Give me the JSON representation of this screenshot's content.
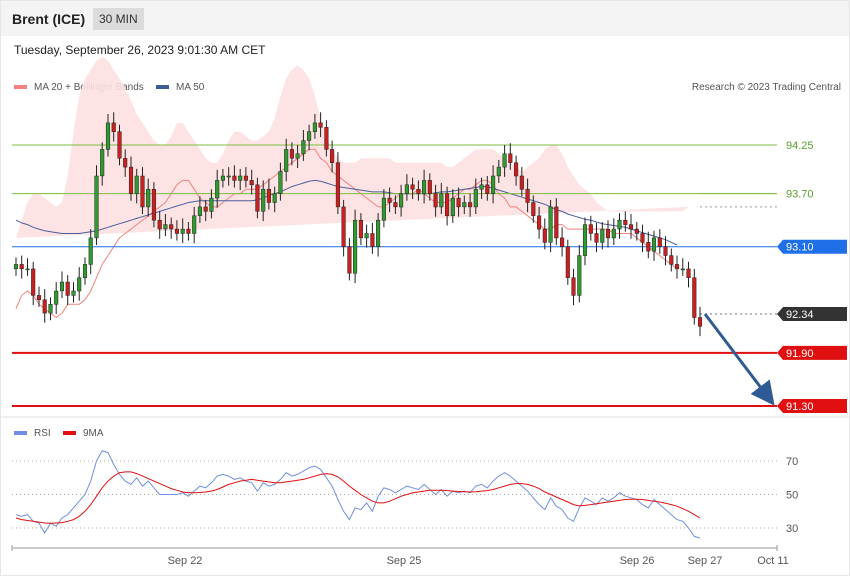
{
  "header": {
    "symbol": "Brent (ICE)",
    "timeframe": "30 MIN"
  },
  "datetime": "Tuesday, September 26, 2023 9:01:30 AM CET",
  "credit": "Research © 2023 Trading Central",
  "colors": {
    "up": "#2f9a2f",
    "down": "#cc1f1f",
    "ma20": "#f2837f",
    "ma50": "#4a5f9e",
    "band": "#fde0e0",
    "support": "#e01010",
    "pivot": "#1f6fe8",
    "last": "#333333",
    "resistance": "#7bbd3f",
    "rsi": "#6f8fe0",
    "rsi_ma": "#e01010",
    "arrow": "#2f5b94"
  },
  "chart_data": [
    {
      "type": "candlestick",
      "title": "Brent (ICE)",
      "legend": [
        {
          "label": "MA 20 + Bollinger Bands",
          "color": "#f2837f"
        },
        {
          "label": "MA 50",
          "color": "#3b5b99"
        }
      ],
      "x_tick_labels": [
        "Sep 22",
        "Sep 25",
        "Sep 26",
        "Sep 27",
        "Oct 11"
      ],
      "ylim": [
        90.9,
        95.4
      ],
      "levels": [
        {
          "label": "94.25",
          "value": 94.25,
          "kind": "resistance"
        },
        {
          "label": "93.70",
          "value": 93.7,
          "kind": "resistance"
        },
        {
          "label": "93.10",
          "value": 93.1,
          "kind": "pivot"
        },
        {
          "label": "92.34",
          "value": 92.34,
          "kind": "last"
        },
        {
          "label": "91.90",
          "value": 91.9,
          "kind": "support"
        },
        {
          "label": "91.30",
          "value": 91.3,
          "kind": "support"
        }
      ],
      "projection": {
        "from": 92.34,
        "to": 91.3
      },
      "close": [
        92.9,
        92.85,
        92.85,
        92.55,
        92.5,
        92.35,
        92.45,
        92.6,
        92.7,
        92.55,
        92.6,
        92.75,
        92.9,
        93.2,
        93.9,
        94.2,
        94.5,
        94.4,
        94.1,
        94,
        93.7,
        93.9,
        93.55,
        93.75,
        93.4,
        93.3,
        93.35,
        93.3,
        93.25,
        93.3,
        93.25,
        93.45,
        93.55,
        93.5,
        93.65,
        93.85,
        93.9,
        93.9,
        93.85,
        93.9,
        93.85,
        93.8,
        93.5,
        93.75,
        93.6,
        93.7,
        93.95,
        94.2,
        94.1,
        94.15,
        94.3,
        94.4,
        94.5,
        94.45,
        94.2,
        94.05,
        93.55,
        93.1,
        92.8,
        93.4,
        93.2,
        93.25,
        93.1,
        93.4,
        93.65,
        93.6,
        93.55,
        93.7,
        93.8,
        93.75,
        93.7,
        93.85,
        93.7,
        93.55,
        93.7,
        93.45,
        93.65,
        93.55,
        93.6,
        93.55,
        93.75,
        93.8,
        93.7,
        93.9,
        94,
        94.15,
        94.05,
        93.9,
        93.75,
        93.6,
        93.45,
        93.3,
        93.15,
        93.55,
        93.2,
        93.1,
        92.75,
        92.55,
        93,
        93.35,
        93.25,
        93.15,
        93.3,
        93.2,
        93.3,
        93.4,
        93.35,
        93.3,
        93.25,
        93.15,
        93.05,
        93.2,
        93.1,
        93,
        92.9,
        92.85,
        92.85,
        92.75,
        92.3,
        92.2
      ],
      "ma20_by_candle": [
        92.4,
        92.55,
        92.6,
        92.55,
        92.45,
        92.4,
        92.35,
        92.3,
        92.35,
        92.45,
        92.45,
        92.45,
        92.5,
        92.6,
        92.75,
        92.9,
        93,
        93.1,
        93.2,
        93.25,
        93.3,
        93.35,
        93.4,
        93.45,
        93.5,
        93.55,
        93.6,
        93.7,
        93.8,
        93.85,
        93.85,
        93.75,
        93.65,
        93.6,
        93.55,
        93.55,
        93.6,
        93.65,
        93.7,
        93.7,
        93.75,
        93.75,
        93.75,
        93.8,
        93.85,
        93.9,
        93.95,
        94,
        94.05,
        94.1,
        94.15,
        94.2,
        94.2,
        94.1,
        94.05,
        93.95,
        93.9,
        93.85,
        93.8,
        93.75,
        93.7,
        93.65,
        93.6,
        93.55,
        93.55,
        93.6,
        93.65,
        93.7,
        93.7,
        93.7,
        93.75,
        93.7,
        93.65,
        93.6,
        93.6,
        93.6,
        93.65,
        93.7,
        93.75,
        93.75,
        93.8,
        93.85,
        93.85,
        93.8,
        93.7,
        93.65,
        93.55,
        93.55,
        93.5,
        93.45,
        93.4,
        93.35,
        93.3,
        93.3,
        93.35,
        93.35,
        93.3,
        93.3,
        93.3,
        93.3,
        93.3,
        93.3,
        93.3,
        93.3,
        93.25,
        93.25,
        93.25,
        93.25,
        93.2,
        93.15,
        93.1,
        93.05,
        93,
        92.95,
        92.9,
        92.85
      ],
      "ma50_by_candle": [
        93.4,
        93.37,
        93.35,
        93.32,
        93.3,
        93.28,
        93.27,
        93.26,
        93.25,
        93.25,
        93.25,
        93.25,
        93.26,
        93.27,
        93.28,
        93.3,
        93.32,
        93.34,
        93.36,
        93.38,
        93.4,
        93.42,
        93.44,
        93.46,
        93.48,
        93.5,
        93.52,
        93.54,
        93.56,
        93.58,
        93.6,
        93.61,
        93.62,
        93.62,
        93.62,
        93.62,
        93.62,
        93.62,
        93.62,
        93.62,
        93.62,
        93.62,
        93.63,
        93.65,
        93.68,
        93.7,
        93.72,
        93.75,
        93.78,
        93.8,
        93.82,
        93.84,
        93.85,
        93.84,
        93.82,
        93.8,
        93.78,
        93.77,
        93.76,
        93.75,
        93.74,
        93.73,
        93.72,
        93.72,
        93.72,
        93.71,
        93.7,
        93.7,
        93.7,
        93.7,
        93.7,
        93.7,
        93.7,
        93.71,
        93.72,
        93.72,
        93.73,
        93.74,
        93.75,
        93.76,
        93.77,
        93.78,
        93.78,
        93.76,
        93.74,
        93.72,
        93.7,
        93.68,
        93.66,
        93.64,
        93.62,
        93.6,
        93.58,
        93.55,
        93.52,
        93.5,
        93.47,
        93.45,
        93.43,
        93.41,
        93.4,
        93.38,
        93.36,
        93.35,
        93.34,
        93.33,
        93.32,
        93.3,
        93.28,
        93.26,
        93.24,
        93.22,
        93.2,
        93.18,
        93.15,
        93.12
      ],
      "bb_upper_by_candle": [
        93.2,
        93.4,
        93.6,
        93.7,
        93.7,
        93.65,
        93.6,
        93.55,
        93.6,
        93.9,
        94.4,
        94.8,
        95,
        95.1,
        95.2,
        95.25,
        95.2,
        95.1,
        95,
        94.9,
        94.75,
        94.6,
        94.5,
        94.4,
        94.3,
        94.25,
        94.25,
        94.35,
        94.5,
        94.5,
        94.4,
        94.3,
        94.2,
        94.1,
        94.05,
        94.05,
        94.15,
        94.3,
        94.4,
        94.4,
        94.35,
        94.3,
        94.3,
        94.35,
        94.4,
        94.55,
        94.8,
        95,
        95.1,
        95.15,
        95.1,
        95,
        94.8,
        94.55,
        94.35,
        94.2,
        94.1,
        94.05,
        94.05,
        94.05,
        94.1,
        94.1,
        94.1,
        94.1,
        94.1,
        94.1,
        94.05,
        94.05,
        94.05,
        94.05,
        94.05,
        94.05,
        94.05,
        94.05,
        94.05,
        94,
        94,
        94.05,
        94.1,
        94.15,
        94.2,
        94.2,
        94.2,
        94.2,
        94.15,
        94.1,
        94.05,
        94,
        93.95,
        94,
        94.05,
        94.1,
        94.2,
        94.25,
        94.25,
        94.15,
        94,
        93.9,
        93.8,
        93.75,
        93.7,
        93.6,
        93.55,
        93.5,
        93.5,
        93.5,
        93.5,
        93.5,
        93.5,
        93.5,
        93.5,
        93.5,
        93.5,
        93.5,
        93.5,
        93.5,
        93.5,
        93.55
      ],
      "bb_lower_by_candle": [
        91.9,
        91.8,
        91.7,
        91.65,
        91.6,
        91.6,
        91.7,
        91.8,
        91.65,
        91.3,
        91.05,
        90.95,
        90.95,
        91.05,
        91.2,
        91.4,
        91.6,
        91.8,
        92,
        92.2,
        92.4,
        92.55,
        92.7,
        92.8,
        92.9,
        93,
        93,
        93,
        93,
        93.05,
        93.1,
        93.1,
        93.05,
        93,
        92.95,
        92.95,
        92.95,
        93,
        93,
        93,
        93,
        93,
        93,
        93,
        93.05,
        93.05,
        93.1,
        93.15,
        93.2,
        93.2,
        93.2,
        93.15,
        93.05,
        92.9,
        92.75,
        92.65,
        92.6,
        92.55,
        92.6,
        92.65,
        92.7,
        92.75,
        92.8,
        92.9,
        92.95,
        93,
        93,
        93.05,
        93.1,
        93.1,
        93.15,
        93.15,
        93.15,
        93.15,
        93.15,
        93.15,
        93.15,
        93.15,
        93.15,
        93.15,
        93.15,
        93.15,
        93.15,
        93.1,
        93.05,
        92.95,
        92.85,
        92.75,
        92.65,
        92.6,
        92.55,
        92.5,
        92.5,
        92.5,
        92.5,
        92.55,
        92.6,
        92.65,
        92.7,
        92.75,
        92.8,
        92.85,
        92.9,
        92.9,
        92.9,
        92.95,
        92.95,
        93,
        93,
        93,
        93,
        93,
        93,
        93,
        93,
        93,
        93,
        93.05
      ]
    },
    {
      "type": "line",
      "title": "RSI",
      "legend": [
        {
          "label": "RSI",
          "color": "#6f8fe0"
        },
        {
          "label": "9MA",
          "color": "#e01010"
        }
      ],
      "ylim": [
        20,
        82
      ],
      "y_ticks": [
        30,
        50,
        70
      ],
      "series": [
        {
          "name": "RSI",
          "values": [
            38,
            37,
            38,
            34,
            33,
            27,
            33,
            31,
            36,
            38,
            42,
            46,
            50,
            58,
            70,
            76,
            75,
            68,
            62,
            58,
            56,
            60,
            55,
            58,
            54,
            50,
            50,
            50,
            50,
            51,
            49,
            52,
            55,
            54,
            57,
            61,
            62,
            61,
            59,
            60,
            58,
            57,
            52,
            57,
            55,
            56,
            59,
            63,
            61,
            62,
            64,
            66,
            67,
            65,
            60,
            55,
            47,
            40,
            35,
            42,
            41,
            45,
            40,
            49,
            54,
            53,
            51,
            53,
            55,
            54,
            53,
            56,
            53,
            50,
            53,
            49,
            52,
            51,
            52,
            51,
            55,
            56,
            54,
            58,
            61,
            63,
            61,
            58,
            55,
            52,
            48,
            44,
            41,
            48,
            43,
            41,
            36,
            34,
            42,
            48,
            46,
            44,
            48,
            46,
            48,
            51,
            49,
            48,
            47,
            44,
            42,
            47,
            44,
            41,
            38,
            35,
            34,
            30,
            25,
            24
          ]
        },
        {
          "name": "9MA",
          "values": [
            36,
            35,
            34.5,
            34,
            33.5,
            33,
            32.8,
            33,
            33.2,
            34,
            35,
            37,
            40,
            44,
            49,
            54,
            58,
            61,
            63,
            63.5,
            63.5,
            62.5,
            61,
            59.5,
            58,
            56.5,
            55,
            53.5,
            52.5,
            51.5,
            51,
            51,
            51.2,
            51.5,
            52,
            53,
            54.5,
            56,
            57,
            58,
            58.5,
            59,
            58.5,
            58,
            57.5,
            57,
            57,
            57.5,
            58,
            58.5,
            59,
            60,
            61,
            62,
            62.5,
            62,
            60.5,
            58,
            55,
            52.5,
            50,
            48,
            46,
            45,
            45,
            46,
            47.5,
            49,
            50,
            51,
            51.5,
            52,
            52.5,
            52.5,
            52.5,
            52.3,
            52,
            51.8,
            51.6,
            51.5,
            51.7,
            52,
            52.3,
            53,
            54,
            55,
            56,
            56.5,
            56.5,
            56,
            55,
            53.5,
            51.5,
            50,
            48.5,
            47,
            45.5,
            44,
            43.2,
            43.5,
            44,
            44.5,
            45,
            45.5,
            46,
            46.5,
            47,
            47.2,
            47.2,
            47,
            46.5,
            46,
            45.5,
            44.8,
            44,
            43,
            41.5,
            40,
            38,
            36
          ]
        }
      ]
    }
  ]
}
